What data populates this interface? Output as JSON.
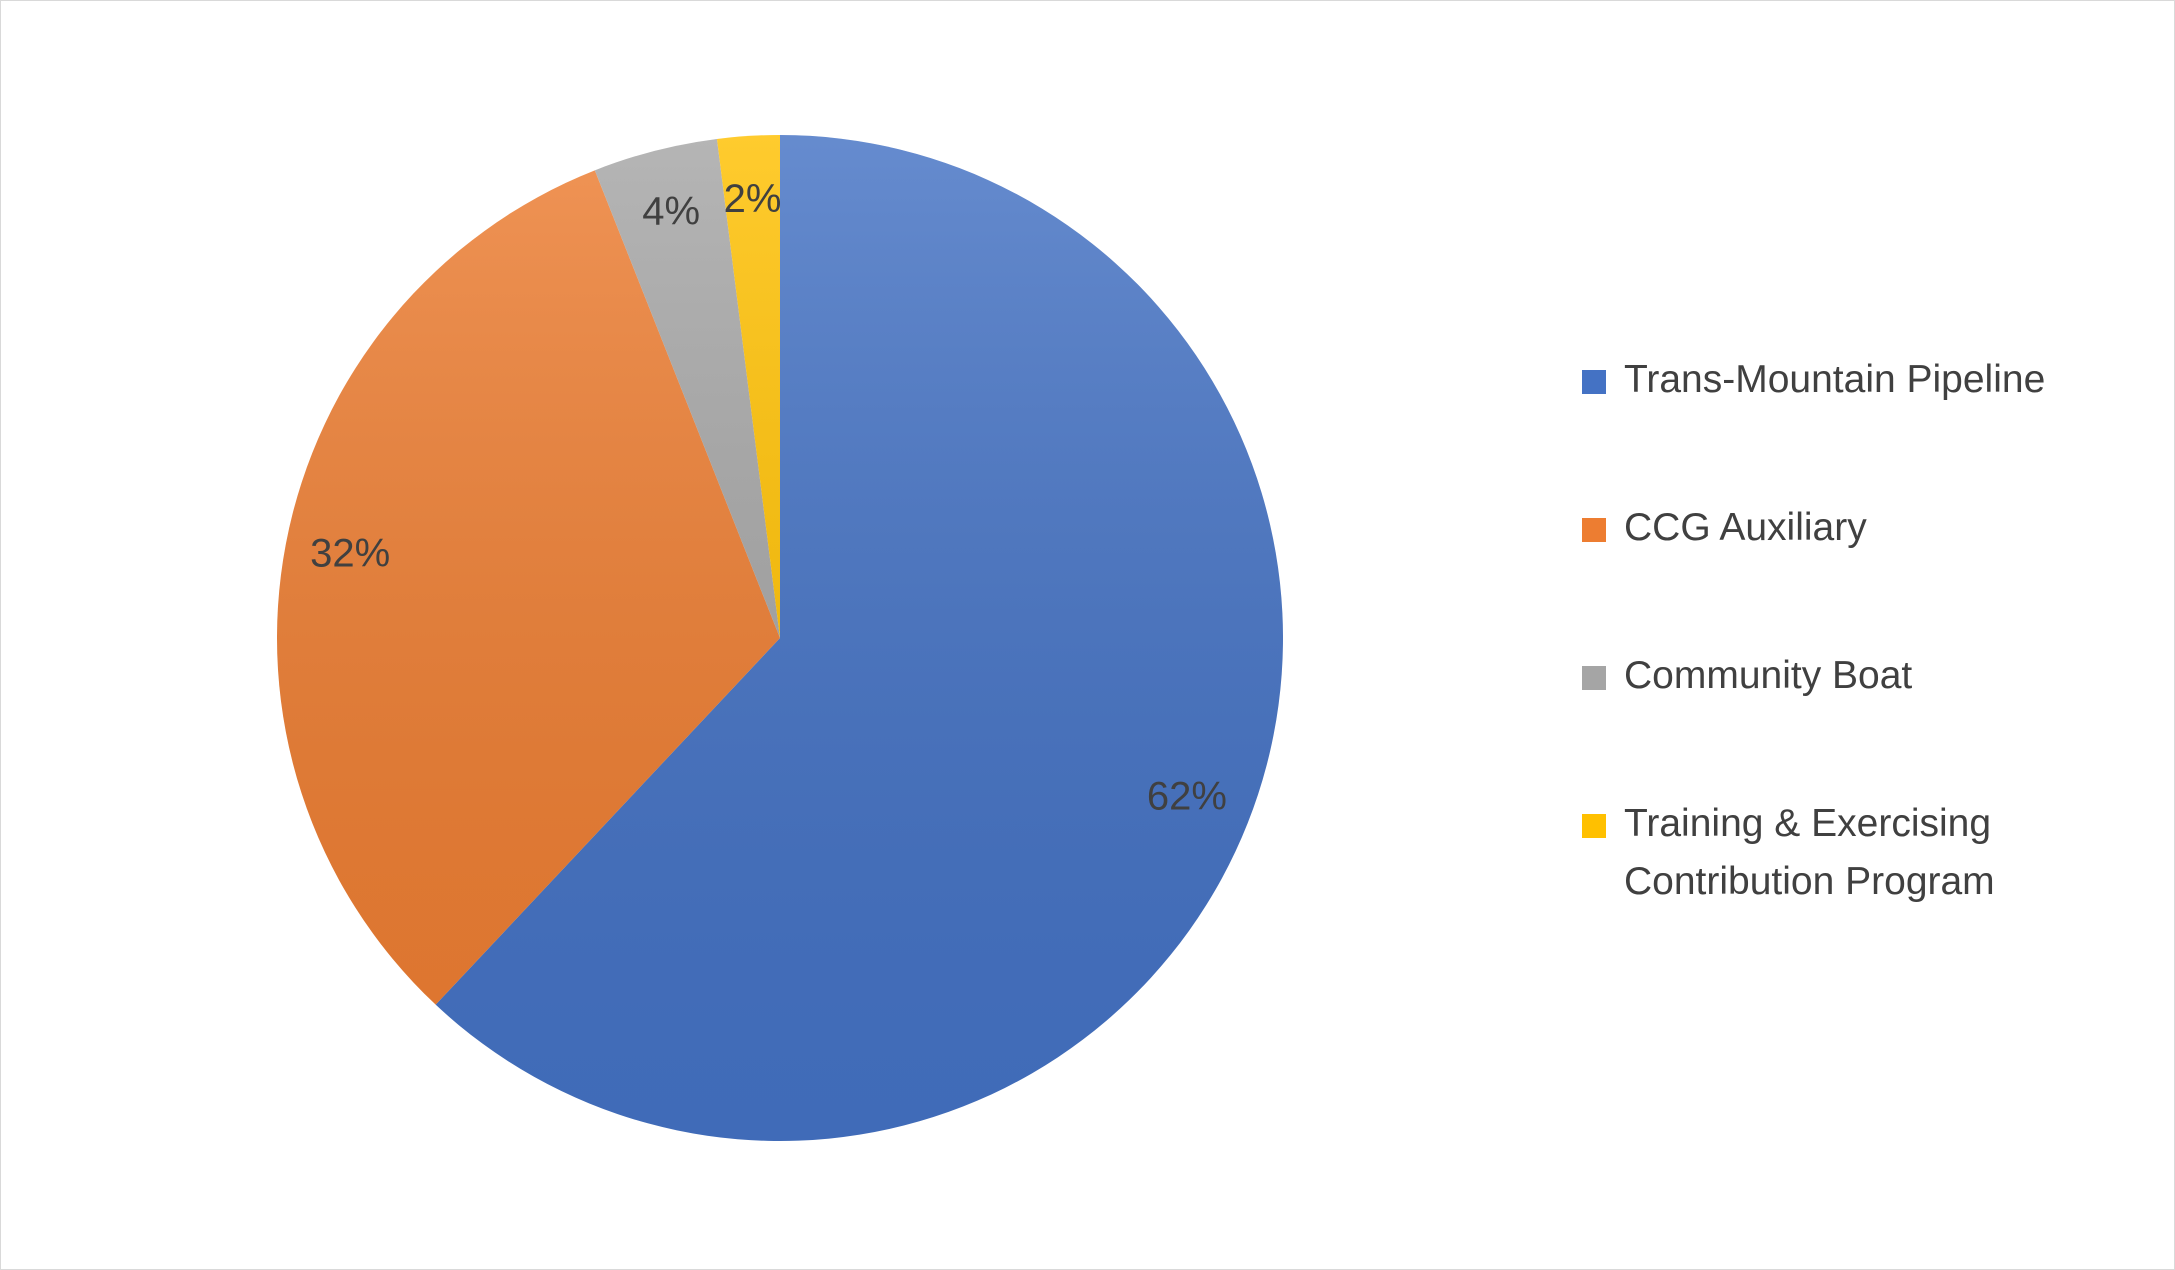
{
  "chart_data": {
    "type": "pie",
    "categories": [
      "Trans-Mountain Pipeline",
      "CCG Auxiliary",
      "Community Boat",
      "Training & Exercising Contribution Program"
    ],
    "values": [
      62,
      32,
      4,
      2
    ],
    "value_labels": [
      "62%",
      "32%",
      "4%",
      "2%"
    ],
    "colors": [
      "#4472c4",
      "#ed7d31",
      "#a5a5a5",
      "#ffc000"
    ],
    "legend": "right"
  }
}
